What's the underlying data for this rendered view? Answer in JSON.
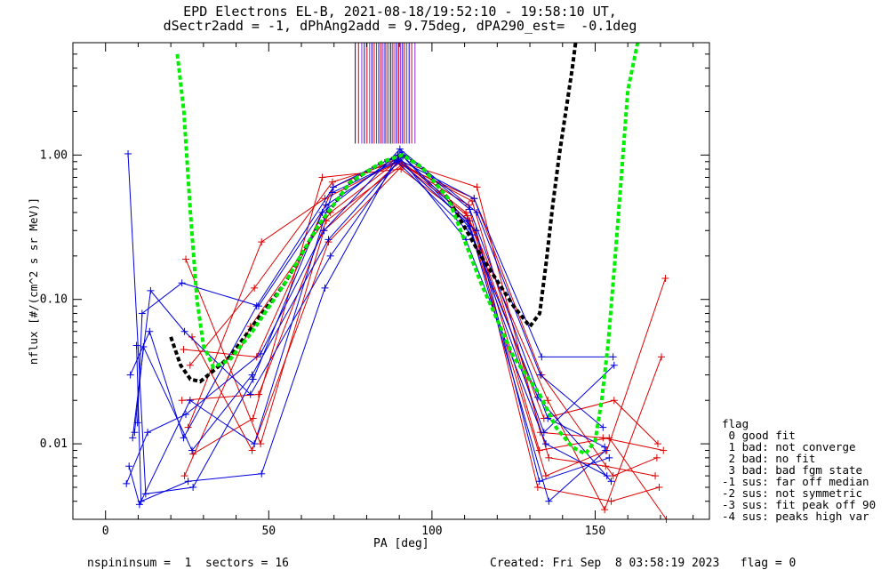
{
  "chart_data": {
    "type": "scatter",
    "title_line1": "EPD Electrons EL-B, 2021-08-18/19:52:10 - 19:58:10 UT,",
    "title_line2": "dSectr2add = -1, dPhAng2add = 9.75deg, dPA290_est=  -0.1deg",
    "xlabel": "PA [deg]",
    "ylabel": "nflux [#/(cm^2 s sr MeV)]",
    "xlim": [
      -10,
      185
    ],
    "ylim": [
      0.003,
      6.0
    ],
    "yscale": "log",
    "xticks": [
      0,
      50,
      100,
      150
    ],
    "yticks": [
      {
        "value": 1.0,
        "label": "1.00"
      },
      {
        "value": 0.1,
        "label": "0.10"
      },
      {
        "value": 0.01,
        "label": "0.01"
      }
    ],
    "colors": {
      "spin_a": "#0000dd",
      "spin_b": "#dd0000",
      "fit_green": "#00ee00",
      "fit_black": "#000000",
      "marker_purple": "#8a2be2"
    },
    "series_profiles": {
      "pa": [
        8,
        12,
        25,
        46,
        68,
        90,
        112,
        134,
        154,
        170
      ],
      "spin_a": [
        [
          0.0053,
          0.012,
          0.016,
          0.042,
          0.3,
          1.1,
          0.4,
          0.03,
          0.013,
          null
        ],
        [
          0.012,
          0.047,
          0.009,
          0.03,
          0.26,
          0.98,
          0.32,
          0.021,
          0.0055,
          null
        ],
        [
          0.03,
          0.06,
          0.011,
          0.09,
          0.6,
          1.0,
          0.26,
          0.01,
          0.006,
          null
        ],
        [
          0.048,
          0.004,
          0.0055,
          0.0062,
          0.12,
          0.95,
          0.5,
          0.04,
          0.04,
          null
        ],
        [
          1.02,
          0.0045,
          0.005,
          0.028,
          0.4,
          1.05,
          0.42,
          0.015,
          0.0095,
          null
        ],
        [
          0.011,
          0.115,
          0.06,
          0.022,
          0.2,
          0.92,
          0.3,
          0.0055,
          0.008,
          null
        ],
        [
          0.014,
          0.08,
          0.13,
          0.09,
          0.45,
          1.0,
          0.35,
          0.012,
          0.035,
          null
        ],
        [
          0.007,
          0.0038,
          0.02,
          0.01,
          0.55,
          0.9,
          0.28,
          0.004,
          0.009,
          null
        ]
      ],
      "spin_b": [
        [
          null,
          null,
          0.19,
          0.01,
          0.3,
          0.9,
          0.6,
          0.012,
          0.011,
          0.009
        ],
        [
          null,
          null,
          0.055,
          0.009,
          0.25,
          0.85,
          0.45,
          0.005,
          0.004,
          0.005
        ],
        [
          null,
          null,
          0.045,
          0.04,
          0.6,
          0.95,
          0.4,
          0.006,
          0.009,
          0.14
        ],
        [
          null,
          null,
          0.013,
          0.25,
          0.5,
          0.88,
          0.5,
          0.03,
          0.006,
          0.008
        ],
        [
          null,
          null,
          0.0085,
          0.015,
          0.7,
          0.8,
          0.35,
          0.02,
          0.0035,
          0.04
        ],
        [
          null,
          null,
          0.006,
          0.065,
          0.4,
          0.92,
          0.3,
          0.009,
          0.011,
          0.003
        ],
        [
          null,
          null,
          0.02,
          0.022,
          0.35,
          0.86,
          0.38,
          0.015,
          0.02,
          0.01
        ],
        [
          null,
          null,
          0.035,
          0.12,
          0.65,
          0.9,
          0.48,
          0.008,
          0.007,
          0.006
        ]
      ]
    },
    "fit_green": {
      "x": [
        22,
        24,
        26,
        28,
        30,
        33,
        38,
        45,
        55,
        65,
        75,
        85,
        91,
        97,
        105,
        115,
        125,
        133,
        138,
        143,
        147,
        150,
        152,
        154,
        156,
        158,
        160,
        163
      ],
      "y": [
        5.0,
        2.0,
        0.4,
        0.1,
        0.048,
        0.034,
        0.038,
        0.06,
        0.13,
        0.32,
        0.65,
        0.9,
        1.0,
        0.82,
        0.5,
        0.13,
        0.04,
        0.022,
        0.013,
        0.0095,
        0.0085,
        0.0105,
        0.02,
        0.05,
        0.18,
        0.7,
        2.8,
        6.0
      ]
    },
    "fit_black": {
      "x": [
        20,
        23,
        26,
        29,
        33,
        38,
        45,
        55,
        65,
        75,
        85,
        91,
        97,
        105,
        115,
        125,
        130,
        133,
        135,
        137,
        139,
        141,
        143,
        144
      ],
      "y": [
        0.055,
        0.035,
        0.028,
        0.027,
        0.032,
        0.04,
        0.065,
        0.13,
        0.32,
        0.65,
        0.9,
        1.0,
        0.82,
        0.5,
        0.2,
        0.09,
        0.065,
        0.08,
        0.18,
        0.45,
        1.0,
        2.0,
        4.0,
        6.0
      ]
    },
    "sector_markers_pa": [
      76.5,
      77.5,
      78.5,
      79.3,
      80.1,
      80.9,
      81.6,
      82.3,
      83.0,
      83.7,
      84.4,
      85.0,
      85.6,
      86.2,
      86.8,
      87.4,
      88.0,
      88.6,
      89.2,
      89.8,
      90.4,
      91.0,
      91.6,
      92.3,
      93.0,
      93.8,
      94.8
    ],
    "sector_marker_ylim": [
      1.2,
      6.0
    ],
    "legend": {
      "title": "flag",
      "entries": [
        " 0 good fit",
        " 1 bad: not converge",
        " 2 bad: no fit",
        " 3 bad: bad fgm state",
        "-1 sus: far off median",
        "-2 sus: not symmetric",
        "-3 sus: fit peak off 90",
        "-4 sus: peaks high var"
      ]
    },
    "footer": {
      "left": "nspininsum =  1  sectors = 16",
      "right": "Created: Fri Sep  8 03:58:19 2023   flag = 0"
    }
  }
}
